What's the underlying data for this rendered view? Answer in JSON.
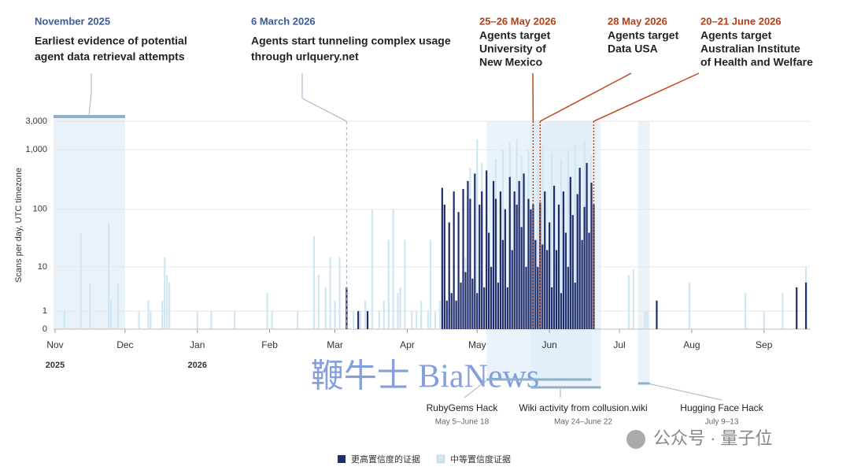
{
  "chart_data": {
    "type": "bar",
    "yscale": "symlog",
    "grid": true,
    "y_label": "Scans per day, UTC timezone",
    "xlim": [
      "2025-11-01",
      "2026-09-21"
    ],
    "xticks": [
      {
        "value": "2025-11-01",
        "label": "Nov"
      },
      {
        "value": "2025-12-01",
        "label": "Dec"
      },
      {
        "value": "2026-01-01",
        "label": "Jan"
      },
      {
        "value": "2026-02-01",
        "label": "Feb"
      },
      {
        "value": "2026-03-01",
        "label": "Mar"
      },
      {
        "value": "2026-04-01",
        "label": "Apr"
      },
      {
        "value": "2026-05-01",
        "label": "May"
      },
      {
        "value": "2026-06-01",
        "label": "Jun"
      },
      {
        "value": "2026-07-01",
        "label": "Jul"
      },
      {
        "value": "2026-08-01",
        "label": "Aug"
      },
      {
        "value": "2026-09-01",
        "label": "Sep"
      }
    ],
    "year_labels": [
      {
        "value": "2025-11-01",
        "label": "2025"
      },
      {
        "value": "2026-01-01",
        "label": "2026"
      }
    ],
    "ylim": [
      0,
      3000
    ],
    "yticks": [
      0,
      1,
      10,
      100,
      {
        "value": 1000,
        "label": "1,000"
      },
      {
        "value": 3000,
        "label": "3,000"
      }
    ],
    "series": [
      {
        "name": "更高置信度的证据",
        "color": "#1f2d6b",
        "x": [
          "2026-03-06",
          "2026-03-11",
          "2026-03-15",
          "2026-04-16",
          "2026-04-17",
          "2026-04-18",
          "2026-04-19",
          "2026-04-20",
          "2026-04-21",
          "2026-04-22",
          "2026-04-23",
          "2026-04-24",
          "2026-04-25",
          "2026-04-26",
          "2026-04-27",
          "2026-04-28",
          "2026-04-29",
          "2026-04-30",
          "2026-05-01",
          "2026-05-02",
          "2026-05-03",
          "2026-05-04",
          "2026-05-05",
          "2026-05-06",
          "2026-05-07",
          "2026-05-08",
          "2026-05-09",
          "2026-05-10",
          "2026-05-11",
          "2026-05-12",
          "2026-05-13",
          "2026-05-14",
          "2026-05-15",
          "2026-05-16",
          "2026-05-17",
          "2026-05-18",
          "2026-05-19",
          "2026-05-20",
          "2026-05-21",
          "2026-05-22",
          "2026-05-23",
          "2026-05-24",
          "2026-05-25",
          "2026-05-26",
          "2026-05-27",
          "2026-05-28",
          "2026-05-29",
          "2026-05-30",
          "2026-05-31",
          "2026-06-01",
          "2026-06-02",
          "2026-06-03",
          "2026-06-04",
          "2026-06-05",
          "2026-06-06",
          "2026-06-07",
          "2026-06-08",
          "2026-06-09",
          "2026-06-10",
          "2026-06-11",
          "2026-06-12",
          "2026-06-13",
          "2026-06-14",
          "2026-06-15",
          "2026-06-16",
          "2026-06-17",
          "2026-06-18",
          "2026-06-19",
          "2026-06-20",
          "2026-07-17",
          "2026-09-15",
          "2026-09-19"
        ],
        "values": [
          4,
          1,
          1,
          230,
          120,
          2,
          60,
          3,
          200,
          2,
          90,
          5,
          220,
          8,
          300,
          150,
          6,
          400,
          3,
          120,
          200,
          4,
          450,
          40,
          10,
          300,
          150,
          5,
          200,
          30,
          100,
          4,
          350,
          20,
          200,
          120,
          300,
          50,
          400,
          10,
          150,
          100,
          120,
          30,
          10,
          130,
          25,
          200,
          20,
          60,
          4,
          250,
          20,
          120,
          3,
          200,
          40,
          10,
          350,
          80,
          5,
          180,
          500,
          30,
          110,
          600,
          40,
          280,
          120,
          2,
          4,
          5
        ]
      },
      {
        "name": "中等置信度证据",
        "color": "#cfe6f2",
        "x": [
          "2025-11-05",
          "2025-11-12",
          "2025-11-16",
          "2025-11-24",
          "2025-11-25",
          "2025-11-28",
          "2025-12-07",
          "2025-12-11",
          "2025-12-12",
          "2025-12-17",
          "2025-12-18",
          "2025-12-19",
          "2025-12-20",
          "2026-01-01",
          "2026-01-07",
          "2026-01-17",
          "2026-01-31",
          "2026-02-02",
          "2026-02-13",
          "2026-02-20",
          "2026-02-22",
          "2026-02-25",
          "2026-02-27",
          "2026-03-01",
          "2026-03-03",
          "2026-03-09",
          "2026-03-12",
          "2026-03-14",
          "2026-03-17",
          "2026-03-20",
          "2026-03-22",
          "2026-03-24",
          "2026-03-26",
          "2026-03-28",
          "2026-03-29",
          "2026-03-31",
          "2026-04-03",
          "2026-04-05",
          "2026-04-07",
          "2026-04-10",
          "2026-04-11",
          "2026-04-13",
          "2026-04-15",
          "2026-04-26",
          "2026-04-28",
          "2026-05-01",
          "2026-05-03",
          "2026-05-09",
          "2026-05-12",
          "2026-05-15",
          "2026-05-18",
          "2026-05-20",
          "2026-05-23",
          "2026-05-27",
          "2026-05-29",
          "2026-06-02",
          "2026-06-06",
          "2026-06-09",
          "2026-06-12",
          "2026-06-16",
          "2026-06-19",
          "2026-07-05",
          "2026-07-07",
          "2026-07-12",
          "2026-07-13",
          "2026-07-31",
          "2026-08-24",
          "2026-09-01",
          "2026-09-09",
          "2026-09-19"
        ],
        "values": [
          1,
          40,
          5,
          60,
          2,
          5,
          1,
          2,
          1,
          2,
          15,
          7,
          5,
          1,
          1,
          1,
          3,
          1,
          1,
          35,
          7,
          4,
          15,
          2,
          15,
          1,
          1,
          2,
          100,
          1,
          2,
          30,
          100,
          3,
          4,
          30,
          1,
          1,
          2,
          1,
          30,
          1,
          2,
          15,
          500,
          1500,
          600,
          700,
          1000,
          1300,
          1500,
          800,
          1000,
          600,
          1200,
          900,
          700,
          1000,
          1200,
          1400,
          800,
          7,
          9,
          1,
          1,
          5,
          3,
          1,
          3,
          10
        ]
      }
    ],
    "annotations": [
      {
        "date_label": "November 2025",
        "lines": [
          "Earliest evidence of potential",
          "agent data retrieval attempts"
        ],
        "color": "#3d5a99",
        "span": [
          "2025-11-01",
          "2025-11-30"
        ]
      },
      {
        "date_label": "6 March 2026",
        "lines": [
          "Agents start tunneling complex usage",
          "through urlquery.net"
        ],
        "color": "#3d5a99",
        "at": "2026-03-06"
      },
      {
        "date_label": "25–26 May 2026",
        "lines": [
          "Agents target",
          "University of",
          "New Mexico"
        ],
        "color": "#b0401c",
        "at": "2026-05-25"
      },
      {
        "date_label": "28 May 2026",
        "lines": [
          "Agents target",
          "Data USA"
        ],
        "color": "#b0401c",
        "at": "2026-05-28"
      },
      {
        "date_label": "20–21 June 2026",
        "lines": [
          "Agents target",
          "Australian Institute",
          "of Health and Welfare"
        ],
        "color": "#b0401c",
        "at": "2026-06-20"
      }
    ],
    "spans": [
      {
        "label": "RubyGems Hack",
        "dates": "May 5–June 18",
        "start": "2026-05-05",
        "end": "2026-06-18"
      },
      {
        "label": "Wiki activity from collusion.wiki",
        "dates": "May 24–June 22",
        "start": "2026-05-24",
        "end": "2026-06-22"
      },
      {
        "label": "Hugging Face Hack",
        "dates": "July 9–13",
        "start": "2026-07-09",
        "end": "2026-07-13"
      }
    ]
  },
  "watermarks": [
    "鞭牛士 BiaNews",
    "公众号 · 量子位"
  ]
}
